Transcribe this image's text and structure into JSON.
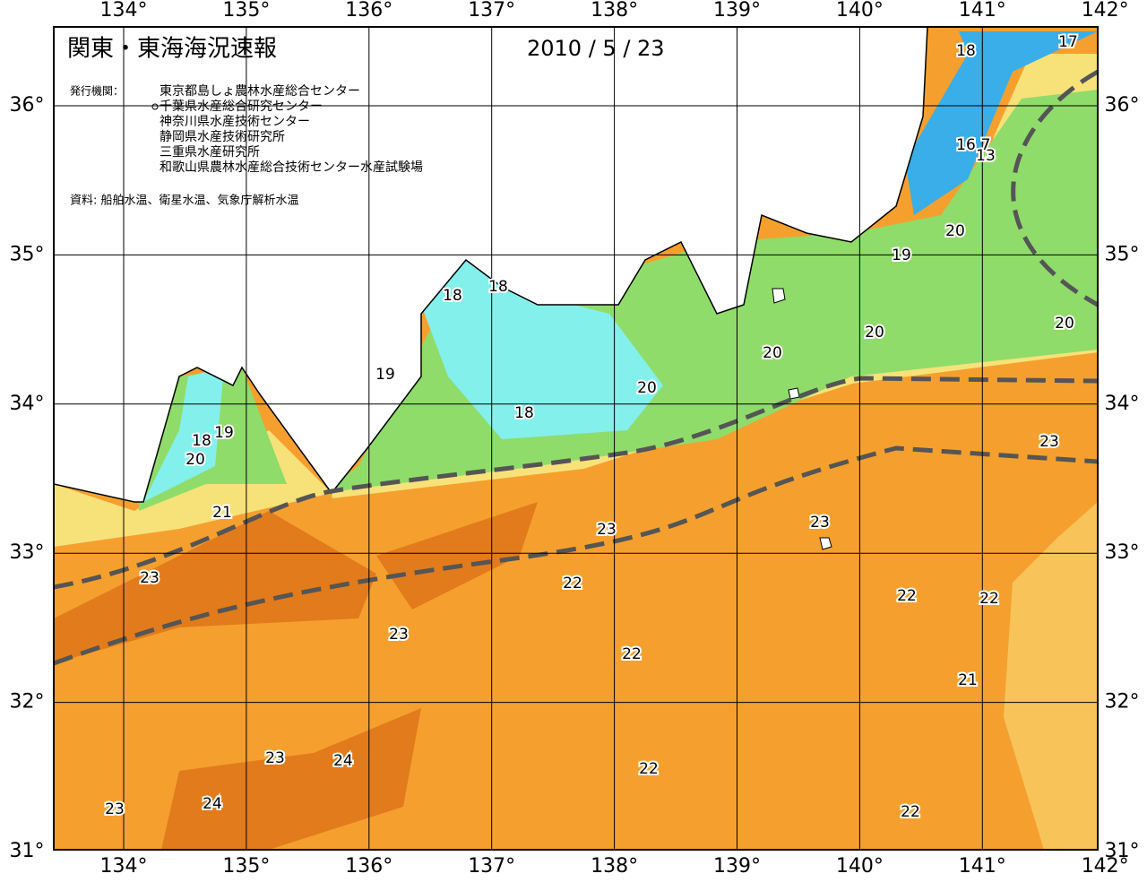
{
  "header": {
    "title": "関東・東海海況速報",
    "date": "2010 / 5 / 23",
    "agencies_label": "発行機関：",
    "agencies": [
      "東京都島しょ農林水産総合センター",
      "千葉県水産総合研究センター",
      "神奈川県水産技術センター",
      "静岡県水産技術研究所",
      "三重県水産研究所",
      "和歌山県農林水産総合技術センター水産試験場"
    ],
    "source": "資料: 船舶水温、衛星水温、気象庁解析水温"
  },
  "axes": {
    "lon_ticks": [
      {
        "value": 134,
        "label": "134°"
      },
      {
        "value": 135,
        "label": "135°"
      },
      {
        "value": 136,
        "label": "136°"
      },
      {
        "value": 137,
        "label": "137°"
      },
      {
        "value": 138,
        "label": "138°"
      },
      {
        "value": 139,
        "label": "139°"
      },
      {
        "value": 140,
        "label": "140°"
      },
      {
        "value": 141,
        "label": "141°"
      },
      {
        "value": 142,
        "label": "142°"
      }
    ],
    "lat_ticks": [
      {
        "value": 31,
        "label": "31°"
      },
      {
        "value": 32,
        "label": "32°"
      },
      {
        "value": 33,
        "label": "33°"
      },
      {
        "value": 34,
        "label": "34°"
      },
      {
        "value": 35,
        "label": "35°"
      },
      {
        "value": 36,
        "label": "36°"
      }
    ]
  },
  "contour_labels": [
    "18",
    "17",
    "16",
    "7",
    "13",
    "20",
    "19",
    "20",
    "20",
    "20",
    "20",
    "18",
    "18",
    "19",
    "18",
    "18",
    "19",
    "20",
    "21",
    "23",
    "23",
    "23",
    "23",
    "22",
    "22",
    "22",
    "23",
    "22",
    "21",
    "23",
    "24",
    "22",
    "23",
    "24",
    "22"
  ]
}
